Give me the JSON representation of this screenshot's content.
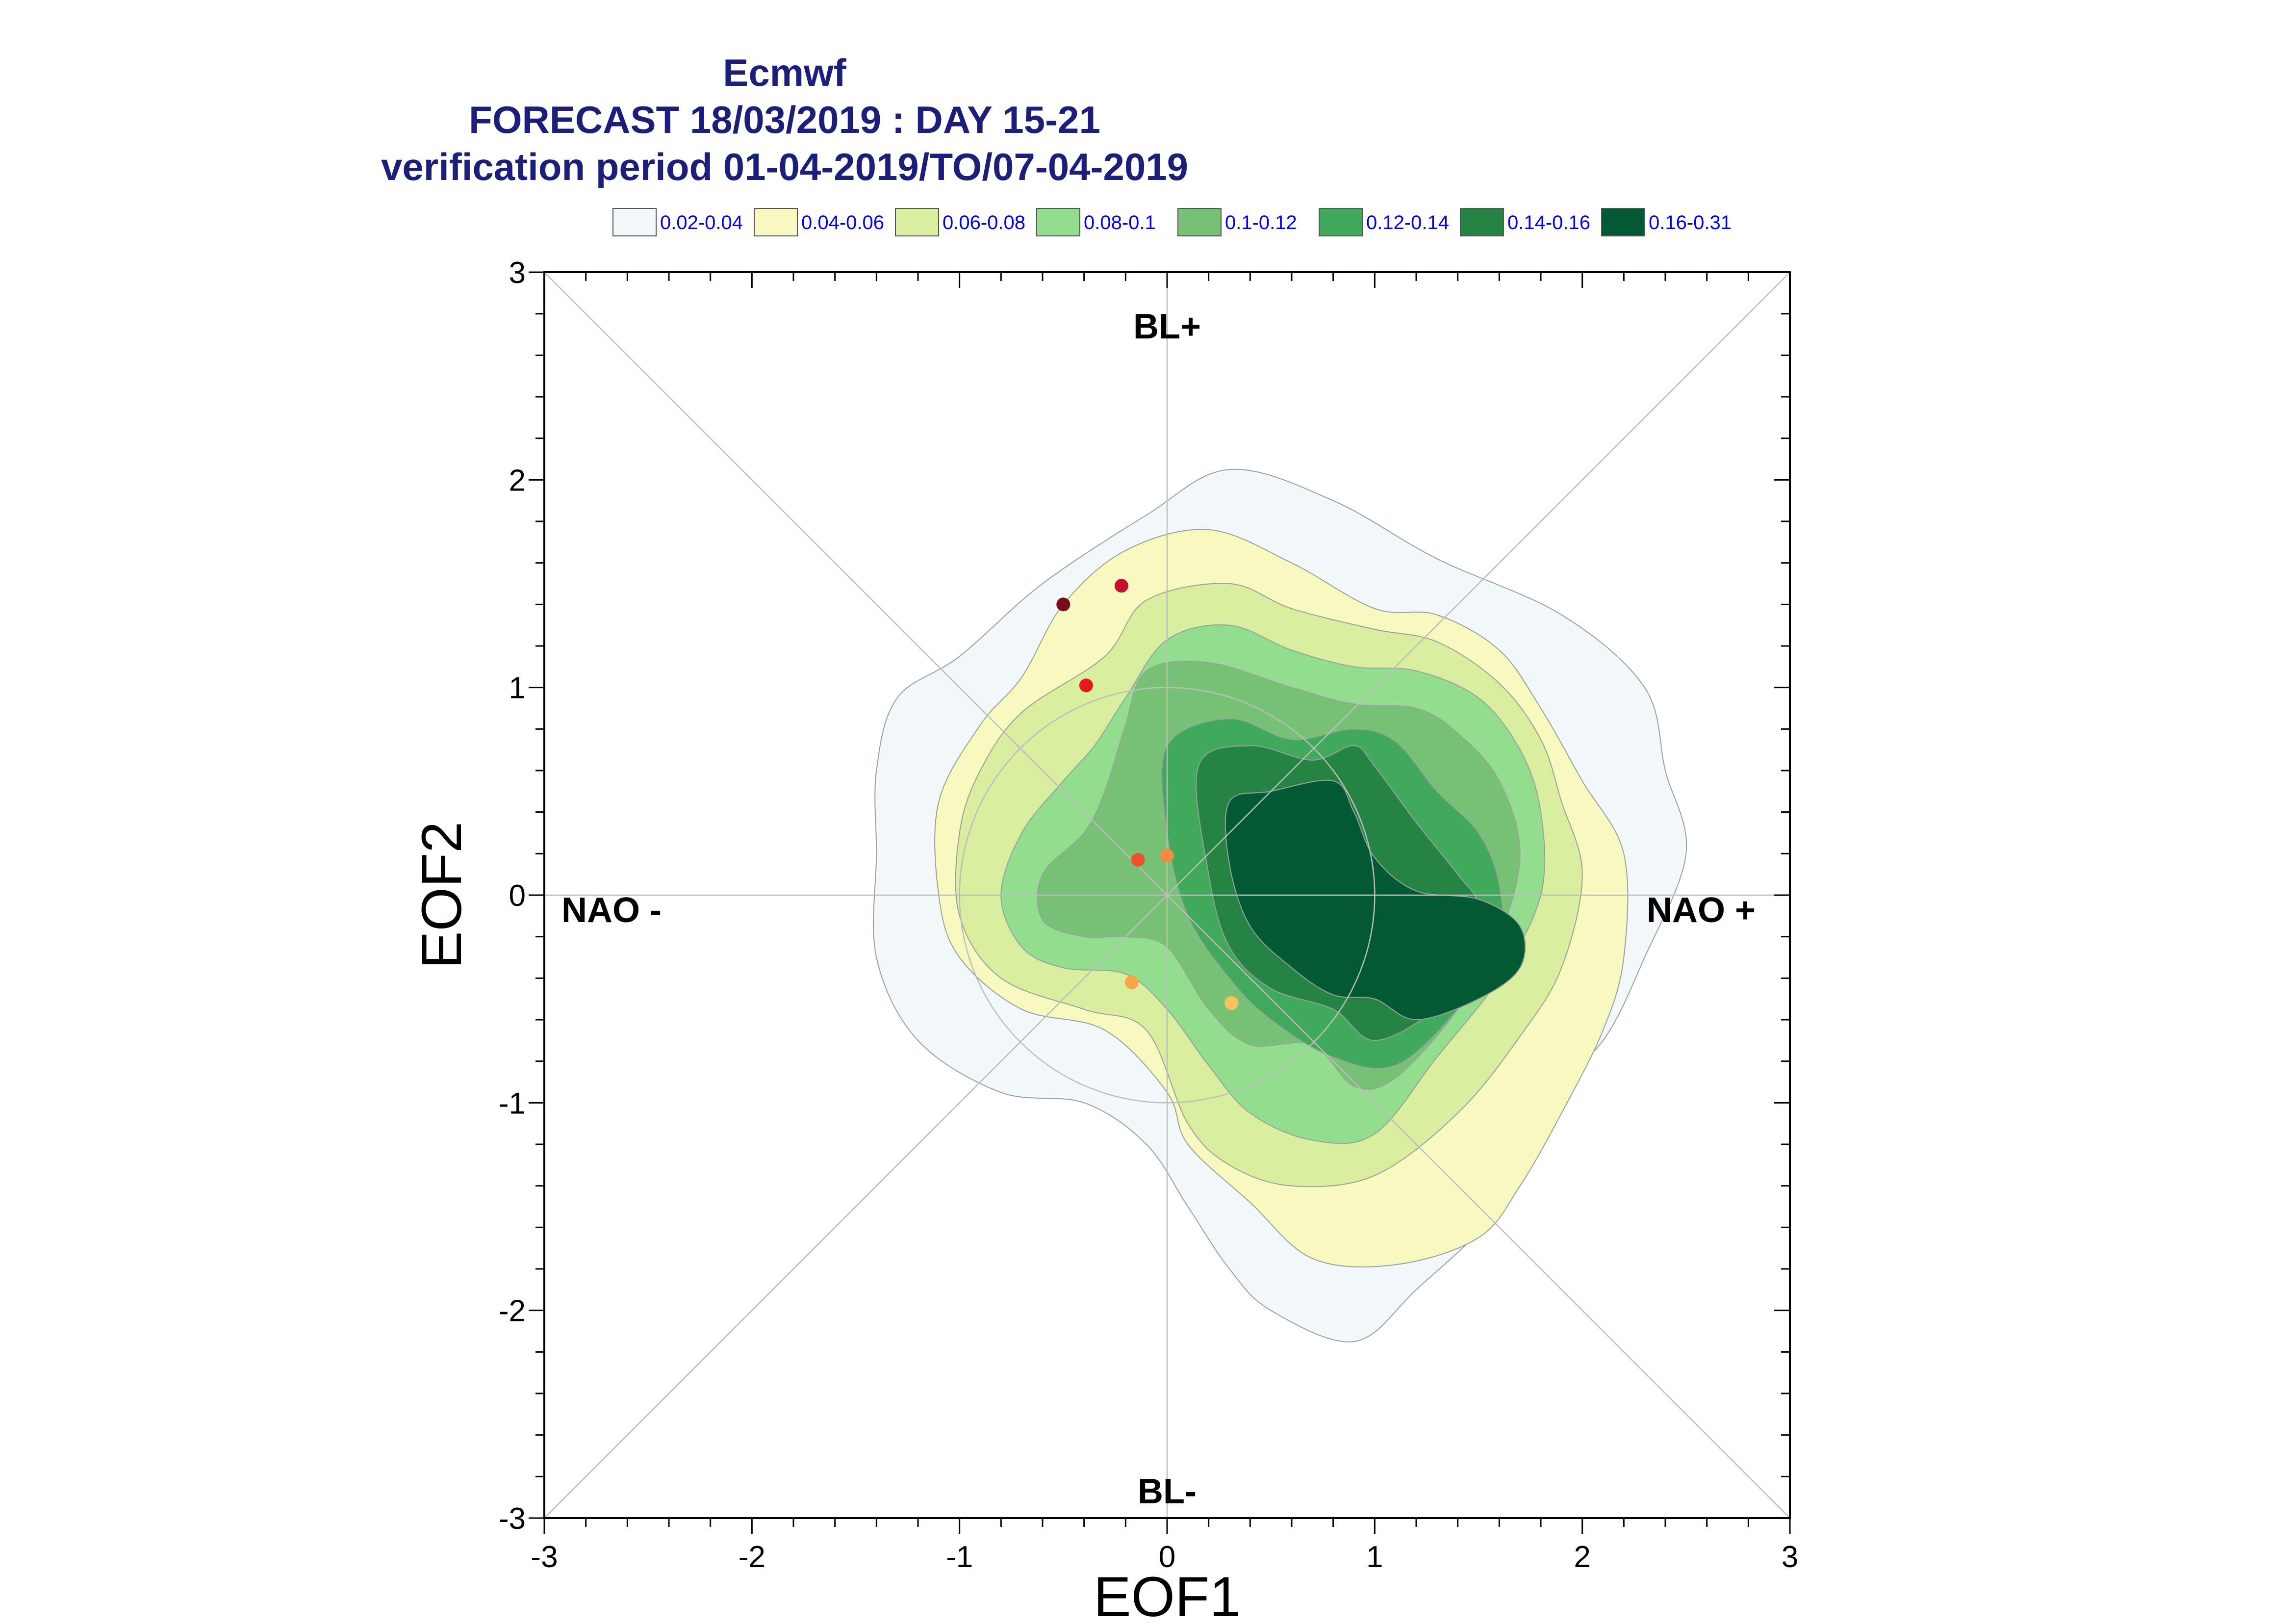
{
  "title": {
    "line1": "Ecmwf",
    "line2": "FORECAST 18/03/2019 : DAY 15-21",
    "line3": "verification period 01-04-2019/TO/07-04-2019"
  },
  "legend": [
    {
      "label": "0.02-0.04",
      "color": "#f3f8fb"
    },
    {
      "label": "0.04-0.06",
      "color": "#f7f9bf"
    },
    {
      "label": "0.06-0.08",
      "color": "#d9ee9e"
    },
    {
      "label": "0.08-0.1",
      "color": "#93dd8e"
    },
    {
      "label": "0.1-0.12",
      "color": "#77c274"
    },
    {
      "label": "0.12-0.14",
      "color": "#41a95c"
    },
    {
      "label": "0.14-0.16",
      "color": "#258443"
    },
    {
      "label": "0.16-0.31",
      "color": "#025a34"
    }
  ],
  "chart_data": {
    "type": "scatter",
    "xlabel": "EOF1",
    "ylabel": "EOF2",
    "xlim": [
      -3,
      3
    ],
    "ylim": [
      -3,
      3
    ],
    "xticks": [
      "-3",
      "-2",
      "-1",
      "0",
      "1",
      "2",
      "3"
    ],
    "yticks": [
      "3",
      "2",
      "1",
      "0",
      "-1",
      "-2",
      "-3"
    ],
    "region_labels": {
      "top": "BL+",
      "bottom": "BL-",
      "left": "NAO -",
      "right": "NAO +"
    },
    "reference_circle_radius": 1,
    "points": [
      {
        "x": -0.5,
        "y": 1.4,
        "color": "#7a0a1e"
      },
      {
        "x": -0.22,
        "y": 1.49,
        "color": "#c8102e"
      },
      {
        "x": -0.39,
        "y": 1.01,
        "color": "#e41a1c"
      },
      {
        "x": -0.14,
        "y": 0.17,
        "color": "#f0502a"
      },
      {
        "x": 0.0,
        "y": 0.19,
        "color": "#f68a45"
      },
      {
        "x": -0.17,
        "y": -0.42,
        "color": "#f9a54a"
      },
      {
        "x": 0.31,
        "y": -0.52,
        "color": "#fcc45a"
      }
    ],
    "density_contours": [
      {
        "level": "0.02-0.04",
        "color": "#f3f8fb",
        "x": [
          -0.1,
          0.3,
          0.8,
          1.3,
          1.9,
          2.3,
          2.4,
          2.5,
          2.3,
          2.1,
          1.8,
          1.6,
          1.2,
          0.9,
          0.5,
          0.3,
          0.1,
          -0.1,
          -0.4,
          -0.8,
          -1.2,
          -1.4,
          -1.4,
          -1.4,
          -1.3,
          -1.0,
          -0.6
        ],
        "y": [
          1.83,
          2.05,
          1.9,
          1.62,
          1.35,
          1.0,
          0.6,
          0.2,
          -0.3,
          -0.7,
          -1.0,
          -1.5,
          -1.9,
          -2.15,
          -2.0,
          -1.8,
          -1.5,
          -1.2,
          -1.0,
          -0.95,
          -0.7,
          -0.3,
          0.2,
          0.6,
          0.95,
          1.15,
          1.5
        ]
      },
      {
        "level": "0.04-0.06",
        "color": "#f7f9bf",
        "x": [
          -0.5,
          -0.2,
          0.2,
          0.6,
          1.0,
          1.3,
          1.6,
          1.8,
          2.0,
          2.2,
          2.2,
          2.1,
          1.9,
          1.7,
          1.5,
          1.1,
          0.7,
          0.4,
          0.1,
          0.0,
          -0.3,
          -0.7,
          -1.0,
          -1.1,
          -1.1,
          -0.9,
          -0.7
        ],
        "y": [
          1.4,
          1.66,
          1.76,
          1.6,
          1.38,
          1.35,
          1.18,
          0.9,
          0.55,
          0.2,
          -0.3,
          -0.65,
          -1.05,
          -1.4,
          -1.65,
          -1.78,
          -1.75,
          -1.48,
          -1.2,
          -0.95,
          -0.65,
          -0.55,
          -0.3,
          0.0,
          0.45,
          0.82,
          1.05
        ]
      },
      {
        "level": "0.06-0.08",
        "color": "#d9ee9e",
        "x": [
          -0.3,
          -0.1,
          0.3,
          0.6,
          1.0,
          1.3,
          1.6,
          1.8,
          1.9,
          2.0,
          1.9,
          1.7,
          1.4,
          1.0,
          0.6,
          0.3,
          0.1,
          -0.1,
          -0.4,
          -0.8,
          -1.0,
          -1.0,
          -0.9,
          -0.7
        ],
        "y": [
          1.15,
          1.42,
          1.5,
          1.38,
          1.28,
          1.22,
          1.02,
          0.75,
          0.45,
          0.1,
          -0.35,
          -0.68,
          -1.05,
          -1.35,
          -1.4,
          -1.3,
          -1.1,
          -0.65,
          -0.55,
          -0.4,
          -0.1,
          0.3,
          0.6,
          0.88
        ]
      },
      {
        "level": "0.08-0.1",
        "color": "#93dd8e",
        "x": [
          -0.2,
          0.0,
          0.3,
          0.6,
          0.9,
          1.2,
          1.5,
          1.7,
          1.8,
          1.8,
          1.6,
          1.3,
          1.0,
          0.7,
          0.4,
          0.2,
          0.0,
          -0.2,
          -0.5,
          -0.7,
          -0.8,
          -0.7,
          -0.5,
          -0.35
        ],
        "y": [
          0.95,
          1.23,
          1.3,
          1.18,
          1.1,
          1.08,
          0.95,
          0.7,
          0.4,
          0.0,
          -0.4,
          -0.78,
          -1.15,
          -1.18,
          -1.05,
          -0.82,
          -0.55,
          -0.38,
          -0.35,
          -0.25,
          0.0,
          0.3,
          0.55,
          0.72
        ]
      },
      {
        "level": "0.1-0.12",
        "color": "#77c274",
        "x": [
          -0.2,
          -0.1,
          0.2,
          0.6,
          0.9,
          1.2,
          1.4,
          1.6,
          1.7,
          1.6,
          1.4,
          1.1,
          0.9,
          0.7,
          0.4,
          0.2,
          0.0,
          -0.2,
          -0.4,
          -0.6,
          -0.6,
          -0.4,
          -0.3
        ],
        "y": [
          0.82,
          1.08,
          1.12,
          1.0,
          0.92,
          0.9,
          0.78,
          0.55,
          0.2,
          -0.2,
          -0.55,
          -0.88,
          -0.92,
          -0.72,
          -0.72,
          -0.55,
          -0.25,
          -0.2,
          -0.2,
          -0.12,
          0.1,
          0.3,
          0.5
        ]
      },
      {
        "level": "0.12-0.14",
        "color": "#41a95c",
        "x": [
          0.0,
          0.3,
          0.6,
          0.9,
          1.1,
          1.3,
          1.5,
          1.6,
          1.6,
          1.4,
          1.1,
          0.8,
          0.5,
          0.3,
          0.1,
          0.0
        ],
        "y": [
          0.72,
          0.85,
          0.75,
          0.8,
          0.74,
          0.5,
          0.3,
          0.05,
          -0.25,
          -0.55,
          -0.82,
          -0.78,
          -0.6,
          -0.4,
          -0.1,
          0.3
        ]
      },
      {
        "level": "0.14-0.16",
        "color": "#258443",
        "x": [
          0.15,
          0.4,
          0.7,
          0.9,
          1.0,
          1.2,
          1.4,
          1.5,
          1.5,
          1.3,
          1.0,
          0.8,
          0.5,
          0.3,
          0.2
        ],
        "y": [
          0.62,
          0.72,
          0.65,
          0.72,
          0.62,
          0.35,
          0.1,
          -0.05,
          -0.35,
          -0.55,
          -0.7,
          -0.55,
          -0.45,
          -0.25,
          0.1
        ]
      },
      {
        "level": "0.16-0.31",
        "color": "#025a34",
        "x": [
          0.3,
          0.5,
          0.8,
          0.9,
          1.0,
          1.2,
          1.5,
          1.7,
          1.7,
          1.5,
          1.2,
          1.0,
          0.8,
          0.6,
          0.4,
          0.3
        ],
        "y": [
          0.45,
          0.5,
          0.55,
          0.4,
          0.18,
          0.02,
          -0.02,
          -0.15,
          -0.35,
          -0.5,
          -0.6,
          -0.5,
          -0.48,
          -0.35,
          -0.15,
          0.15
        ]
      }
    ]
  }
}
